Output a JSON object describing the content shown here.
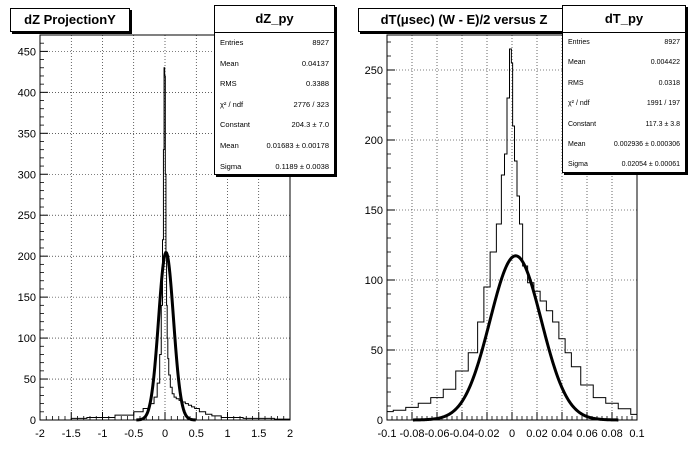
{
  "chart_data": [
    {
      "type": "histogram",
      "title": "dZ ProjectionY",
      "xlim": [
        -2,
        2
      ],
      "ylim": [
        0,
        470
      ],
      "xticks": [
        "-2",
        "-1.5",
        "-1",
        "-0.5",
        "0",
        "0.5",
        "1",
        "1.5",
        "2"
      ],
      "yticks": [
        "0",
        "50",
        "100",
        "150",
        "200",
        "250",
        "300",
        "350",
        "400",
        "450"
      ],
      "grid": true,
      "histogram": {
        "x": [
          -1.5,
          -1.0,
          -0.6,
          -0.4,
          -0.3,
          -0.2,
          -0.15,
          -0.1,
          -0.07,
          -0.05,
          -0.03,
          -0.02,
          -0.01,
          0.0,
          0.01,
          0.02,
          0.03,
          0.04,
          0.05,
          0.07,
          0.1,
          0.13,
          0.16,
          0.2,
          0.25,
          0.3,
          0.35,
          0.4,
          0.45,
          0.5,
          0.6,
          0.7,
          0.8,
          1.0,
          1.5,
          2.0
        ],
        "y": [
          2,
          3,
          6,
          10,
          14,
          20,
          28,
          45,
          80,
          140,
          220,
          330,
          430,
          420,
          300,
          200,
          140,
          100,
          75,
          55,
          40,
          32,
          28,
          26,
          24,
          22,
          20,
          18,
          16,
          14,
          10,
          7,
          5,
          3,
          2,
          1
        ]
      },
      "fit": {
        "function": "gaus",
        "constant": 204.3,
        "mean": 0.01683,
        "sigma": 0.1189
      },
      "stats": {
        "name": "dZ_py",
        "rows": [
          {
            "label": "Entries",
            "value": "8927"
          },
          {
            "label": "Mean",
            "value": "0.04137"
          },
          {
            "label": "RMS",
            "value": "0.3388"
          },
          {
            "label": "χ² / ndf",
            "value": "2776 / 323"
          },
          {
            "label": "Constant",
            "value": "204.3 ± 7.0"
          },
          {
            "label": "Mean",
            "value": "0.01683 ± 0.00178"
          },
          {
            "label": "Sigma",
            "value": "0.1189 ± 0.0038"
          }
        ]
      }
    },
    {
      "type": "histogram",
      "title": "dT(μsec) (W - E)/2 versus Z",
      "xlim": [
        -0.1,
        0.1
      ],
      "ylim": [
        0,
        275
      ],
      "xticks": [
        "-0.1",
        "-0.08",
        "-0.06",
        "-0.04",
        "-0.02",
        "0",
        "0.02",
        "0.04",
        "0.06",
        "0.08",
        "0.1"
      ],
      "yticks": [
        "0",
        "50",
        "100",
        "150",
        "200",
        "250"
      ],
      "grid": true,
      "histogram": {
        "x": [
          -0.1,
          -0.09,
          -0.08,
          -0.07,
          -0.06,
          -0.05,
          -0.04,
          -0.03,
          -0.025,
          -0.02,
          -0.015,
          -0.01,
          -0.007,
          -0.005,
          -0.003,
          -0.001,
          0.0,
          0.001,
          0.003,
          0.005,
          0.007,
          0.01,
          0.015,
          0.02,
          0.025,
          0.03,
          0.035,
          0.04,
          0.045,
          0.05,
          0.06,
          0.07,
          0.08,
          0.09,
          0.1
        ],
        "y": [
          6,
          7,
          9,
          12,
          16,
          22,
          35,
          48,
          70,
          95,
          120,
          140,
          175,
          190,
          230,
          265,
          255,
          210,
          185,
          160,
          140,
          110,
          98,
          92,
          85,
          78,
          70,
          58,
          48,
          38,
          25,
          16,
          12,
          8,
          4
        ]
      },
      "fit": {
        "function": "gaus",
        "constant": 117.3,
        "mean": 0.002936,
        "sigma": 0.02054
      },
      "stats": {
        "name": "dT_py",
        "rows": [
          {
            "label": "Entries",
            "value": "8927"
          },
          {
            "label": "Mean",
            "value": "0.004422"
          },
          {
            "label": "RMS",
            "value": "0.0318"
          },
          {
            "label": "χ² / ndf",
            "value": "1991 / 197"
          },
          {
            "label": "Constant",
            "value": "117.3 ± 3.8"
          },
          {
            "label": "Mean",
            "value": "0.002936 ± 0.000306"
          },
          {
            "label": "Sigma",
            "value": "0.02054 ± 0.00061"
          }
        ]
      }
    }
  ]
}
